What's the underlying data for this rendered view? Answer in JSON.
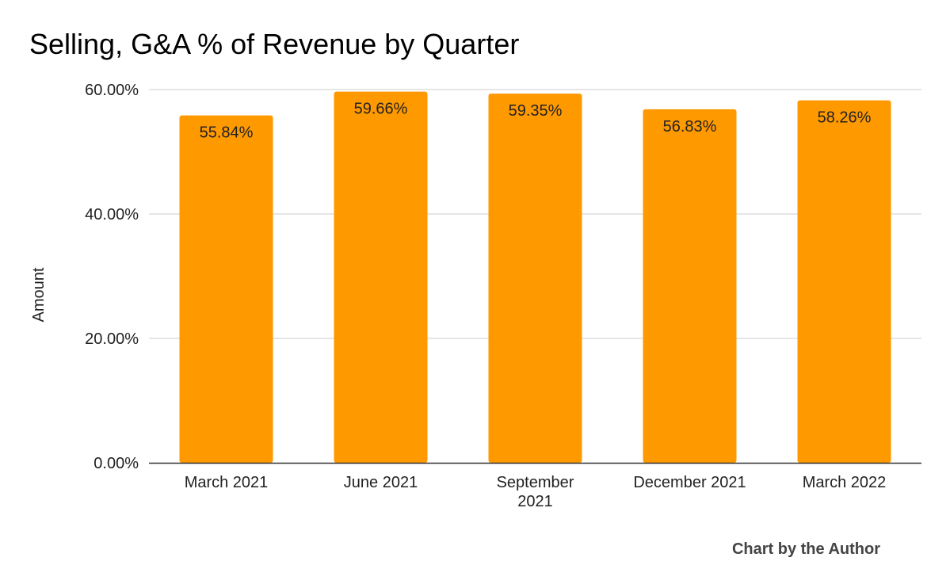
{
  "chart_data": {
    "type": "bar",
    "title": "Selling, G&A % of Revenue by Quarter",
    "xlabel": "",
    "ylabel": "Amount",
    "categories": [
      [
        "March 2021"
      ],
      [
        "June 2021"
      ],
      [
        "September",
        "2021"
      ],
      [
        "December 2021"
      ],
      [
        "March 2022"
      ]
    ],
    "values": [
      55.84,
      59.66,
      59.35,
      56.83,
      58.26
    ],
    "value_labels": [
      "55.84%",
      "59.66%",
      "59.35%",
      "56.83%",
      "58.26%"
    ],
    "y_ticks": [
      0,
      20,
      40,
      60
    ],
    "y_tick_labels": [
      "0.00%",
      "20.00%",
      "40.00%",
      "60.00%"
    ],
    "ylim": [
      0,
      60
    ],
    "grid": true,
    "legend": "none",
    "bar_color": "#FF9900",
    "gridline_color": "#CCCCCC",
    "baseline_color": "#333333"
  },
  "footer": {
    "credit": "Chart by the Author"
  }
}
